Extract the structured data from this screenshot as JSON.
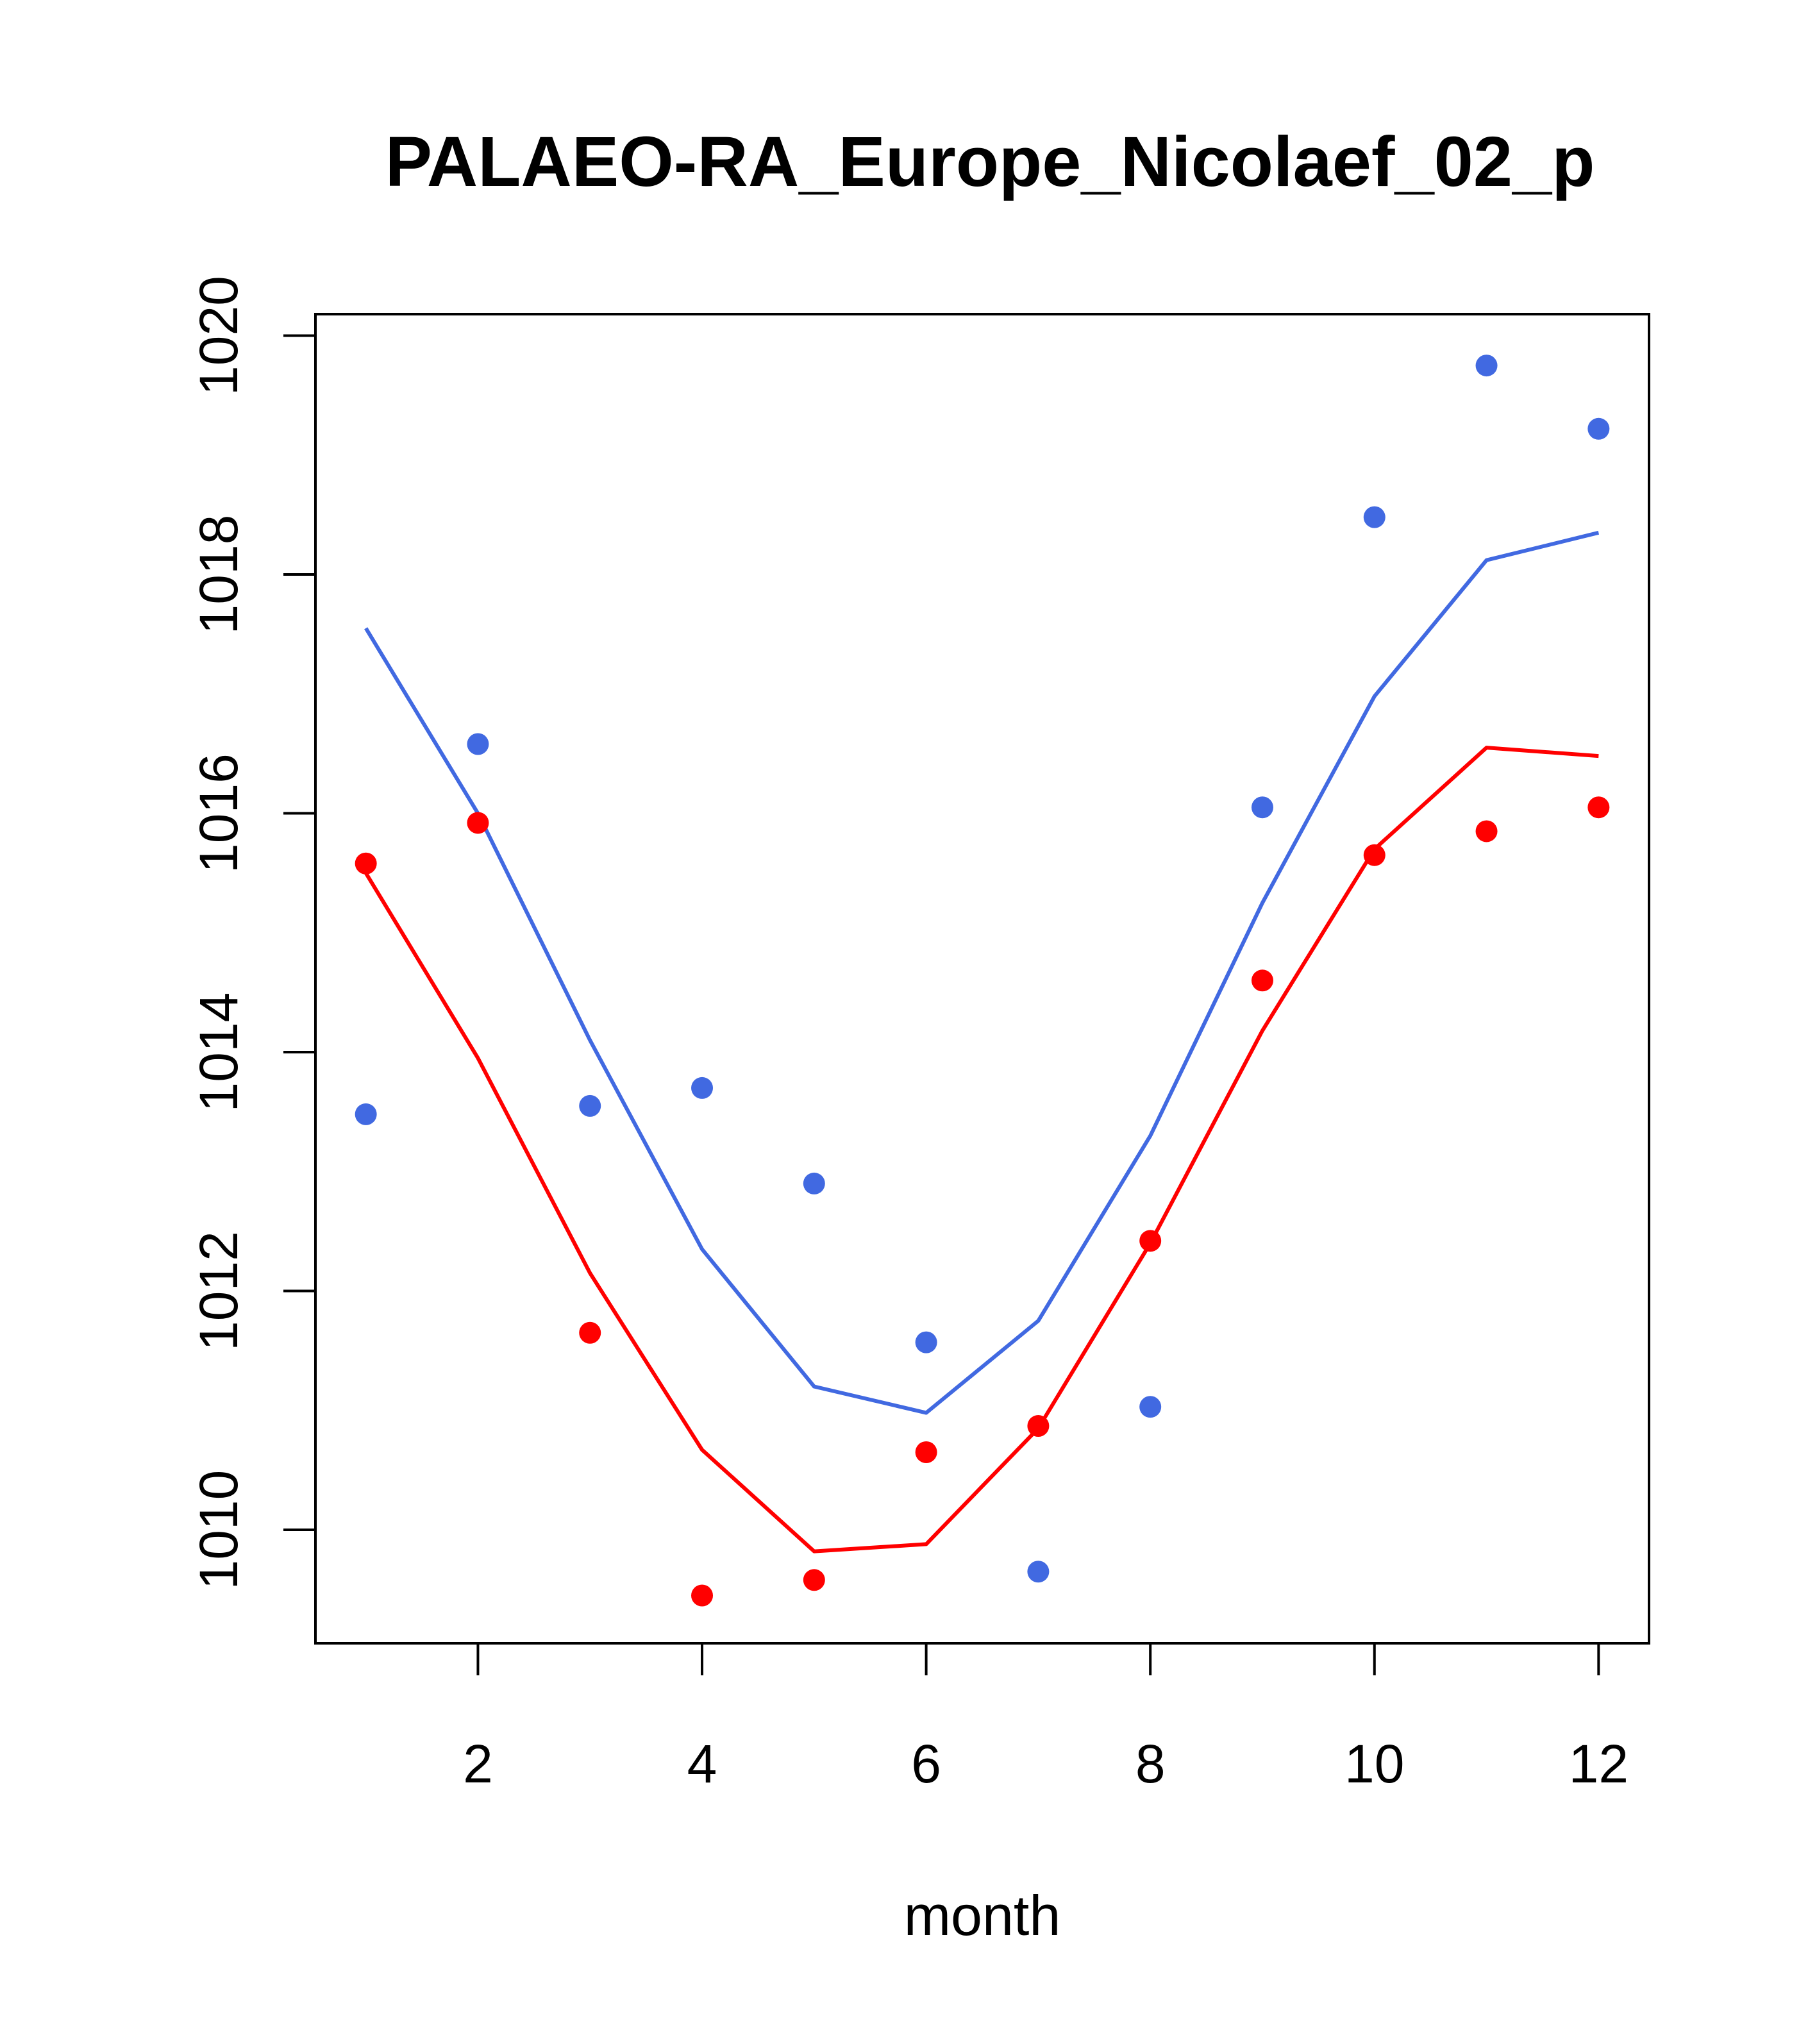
{
  "chart_data": {
    "type": "line",
    "title": "PALAEO-RA_Europe_Nicolaef_02_p",
    "xlabel": "month",
    "ylabel": "",
    "xlim": [
      0.55,
      12.45
    ],
    "ylim": [
      1009.05,
      1020.18
    ],
    "x_ticks": [
      2,
      4,
      6,
      8,
      10,
      12
    ],
    "x_tick_labels": [
      "2",
      "4",
      "6",
      "8",
      "10",
      "12"
    ],
    "y_ticks": [
      1010,
      1012,
      1014,
      1016,
      1018,
      1020
    ],
    "y_tick_labels": [
      "1010",
      "1012",
      "1014",
      "1016",
      "1018",
      "1020"
    ],
    "x": [
      1,
      2,
      3,
      4,
      5,
      6,
      7,
      8,
      9,
      10,
      11,
      12
    ],
    "grid": false,
    "series": [
      {
        "name": "blue-line",
        "color": "#4169E1",
        "kind": "line",
        "values": [
          1017.55,
          1016.0,
          1014.1,
          1012.35,
          1011.2,
          1010.98,
          1011.75,
          1013.3,
          1015.25,
          1016.98,
          1018.12,
          1018.35
        ]
      },
      {
        "name": "red-line",
        "color": "#FF0000",
        "kind": "line",
        "values": [
          1015.5,
          1013.95,
          1012.15,
          1010.67,
          1009.82,
          1009.88,
          1010.85,
          1012.4,
          1014.18,
          1015.7,
          1016.55,
          1016.48
        ]
      },
      {
        "name": "blue-points",
        "color": "#4169E1",
        "kind": "points",
        "values": [
          1013.48,
          1016.58,
          1013.55,
          1013.7,
          1012.9,
          1011.57,
          1009.65,
          1011.03,
          1016.05,
          1018.48,
          1019.75,
          1019.22
        ]
      },
      {
        "name": "red-points",
        "color": "#FF0000",
        "kind": "points",
        "values": [
          1015.58,
          1015.92,
          1011.65,
          1009.45,
          1009.58,
          1010.65,
          1010.87,
          1012.42,
          1014.6,
          1015.65,
          1015.85,
          1016.05
        ]
      }
    ]
  }
}
